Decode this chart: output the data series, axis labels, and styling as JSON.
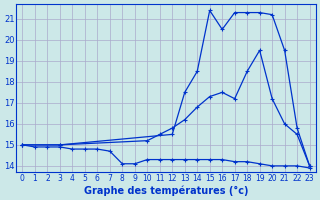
{
  "title": "Graphe des températures (°c)",
  "background_color": "#cce8e8",
  "grid_color": "#aaaacc",
  "line_color": "#0033cc",
  "xlim": [
    -0.5,
    23.5
  ],
  "ylim": [
    13.7,
    21.7
  ],
  "yticks": [
    14,
    15,
    16,
    17,
    18,
    19,
    20,
    21
  ],
  "xticks": [
    0,
    1,
    2,
    3,
    4,
    5,
    6,
    7,
    8,
    9,
    10,
    11,
    12,
    13,
    14,
    15,
    16,
    17,
    18,
    19,
    20,
    21,
    22,
    23
  ],
  "series1_x": [
    0,
    1,
    2,
    3,
    4,
    5,
    6,
    7,
    8,
    9,
    10,
    11,
    12,
    13,
    14,
    15,
    16,
    17,
    18,
    19,
    20,
    21,
    22,
    23
  ],
  "series1_y": [
    15.0,
    14.9,
    14.9,
    14.9,
    14.8,
    14.8,
    14.8,
    14.7,
    14.1,
    14.1,
    14.3,
    14.3,
    14.3,
    14.3,
    14.3,
    14.3,
    14.3,
    14.2,
    14.2,
    14.1,
    14.0,
    14.0,
    14.0,
    13.9
  ],
  "series2_x": [
    0,
    3,
    10,
    11,
    12,
    13,
    14,
    15,
    16,
    17,
    18,
    19,
    20,
    21,
    22,
    23
  ],
  "series2_y": [
    15.0,
    15.0,
    15.2,
    15.5,
    15.8,
    16.2,
    16.8,
    17.3,
    17.5,
    17.2,
    18.5,
    19.5,
    17.2,
    16.0,
    15.5,
    14.0
  ],
  "series3_x": [
    0,
    3,
    12,
    13,
    14,
    15,
    16,
    17,
    18,
    19,
    20,
    21,
    22,
    23
  ],
  "series3_y": [
    15.0,
    15.0,
    15.5,
    17.5,
    18.5,
    21.4,
    20.5,
    21.3,
    21.3,
    21.3,
    21.2,
    19.5,
    15.8,
    14.0
  ]
}
